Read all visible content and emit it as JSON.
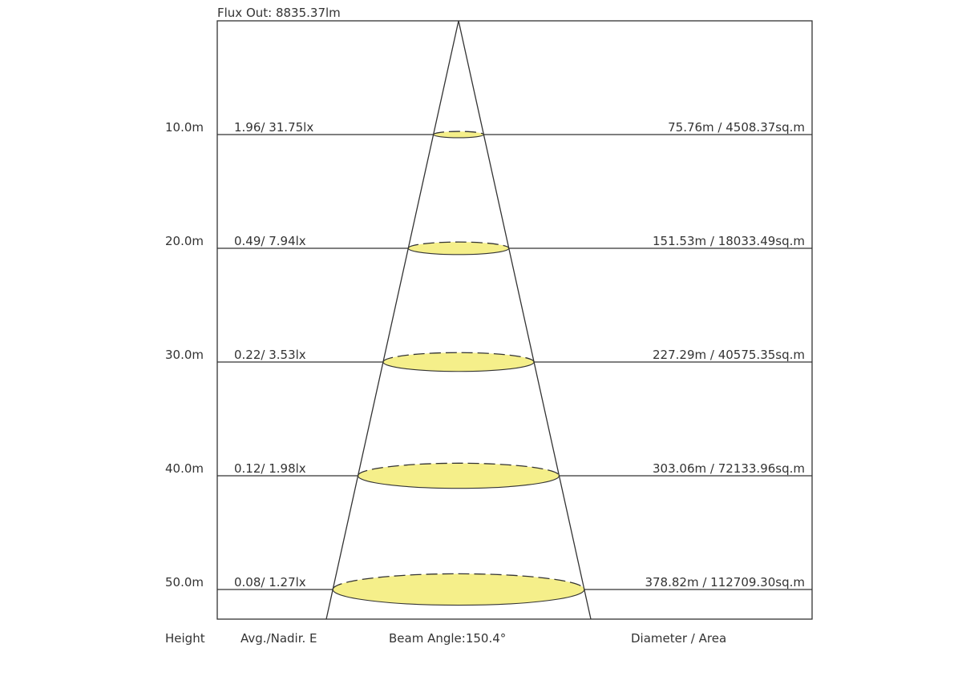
{
  "flux_out": "Flux Out: 8835.37lm",
  "colors": {
    "beam_fill": "#f5ef8a",
    "line": "#333333"
  },
  "rows": [
    {
      "height": "10.0m",
      "illuminance": "1.96/ 31.75lx",
      "diameter_area": "75.76m / 4508.37sq.m"
    },
    {
      "height": "20.0m",
      "illuminance": "0.49/ 7.94lx",
      "diameter_area": "151.53m / 18033.49sq.m"
    },
    {
      "height": "30.0m",
      "illuminance": "0.22/ 3.53lx",
      "diameter_area": "227.29m / 40575.35sq.m"
    },
    {
      "height": "40.0m",
      "illuminance": "0.12/ 1.98lx",
      "diameter_area": "303.06m / 72133.96sq.m"
    },
    {
      "height": "50.0m",
      "illuminance": "0.08/ 1.27lx",
      "diameter_area": "378.82m / 112709.30sq.m"
    }
  ],
  "footer": {
    "height_label": "Height",
    "illuminance_label": "Avg./Nadir. E",
    "beam_angle": "Beam Angle:150.4°",
    "diameter_label": "Diameter / Area"
  }
}
